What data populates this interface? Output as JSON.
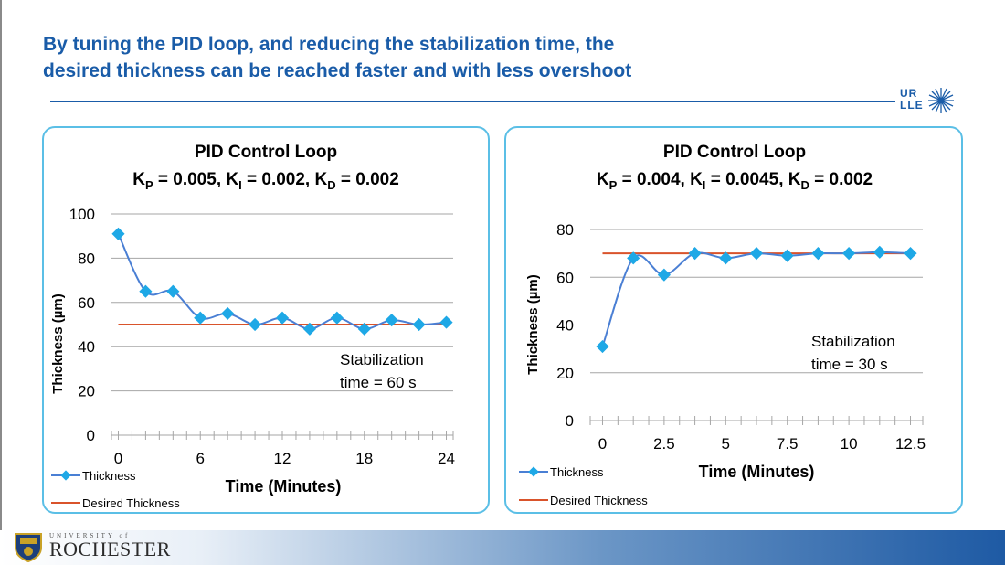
{
  "slide": {
    "title_line1": "By tuning the PID loop, and reducing the stabilization time, the",
    "title_line2": "desired thickness can be reached faster and with less overshoot",
    "logo_text_top": "UR",
    "logo_text_bottom": "LLE",
    "footer_univ_small": "UNIVERSITY of",
    "footer_univ_name": "ROCHESTER",
    "colors": {
      "title": "#1a5ca8",
      "panel_border": "#5bbfe6",
      "thickness": "#4a7fd4",
      "desired": "#d9532b"
    }
  },
  "chart_data": [
    {
      "type": "line",
      "title": "PID Control Loop",
      "gains": {
        "kp": "0.005",
        "ki": "0.002",
        "kd": "0.002"
      },
      "xlabel": "Time (Minutes)",
      "ylabel": "Thickness (µm)",
      "xlim": [
        -0.5,
        24.5
      ],
      "ylim": [
        0,
        100
      ],
      "xticks": [
        "0",
        "6",
        "12",
        "18",
        "24"
      ],
      "yticks": [
        "0",
        "20",
        "40",
        "60",
        "80",
        "100"
      ],
      "grid": true,
      "annotation_line1": "Stabilization",
      "annotation_line2": "time = 60 s",
      "legend": {
        "thickness": "Thickness",
        "desired": "Desired Thickness"
      },
      "series": [
        {
          "name": "Thickness",
          "x": [
            0,
            2,
            4,
            6,
            8,
            10,
            12,
            14,
            16,
            18,
            20,
            22,
            24
          ],
          "y": [
            91,
            65,
            65,
            53,
            55,
            50,
            53,
            48,
            53,
            48,
            52,
            50,
            51
          ]
        },
        {
          "name": "Desired Thickness",
          "x": [
            0,
            24
          ],
          "y": [
            50,
            50
          ]
        }
      ]
    },
    {
      "type": "line",
      "title": "PID Control Loop",
      "gains": {
        "kp": "0.004",
        "ki": "0.0045",
        "kd": "0.002"
      },
      "xlabel": "Time (Minutes)",
      "ylabel": "Thickness (µm)",
      "xlim": [
        -0.5,
        13
      ],
      "ylim": [
        0,
        80
      ],
      "xticks": [
        "0",
        "2.5",
        "5",
        "7.5",
        "10",
        "12.5"
      ],
      "yticks": [
        "0",
        "20",
        "40",
        "60",
        "80"
      ],
      "grid": true,
      "annotation_line1": "Stabilization",
      "annotation_line2": "time = 30 s",
      "legend": {
        "thickness": "Thickness",
        "desired": "Desired Thickness"
      },
      "series": [
        {
          "name": "Thickness",
          "x": [
            0,
            1.25,
            2.5,
            3.75,
            5,
            6.25,
            7.5,
            8.75,
            10,
            11.25,
            12.5
          ],
          "y": [
            31,
            68,
            61,
            70,
            68,
            70,
            69,
            70,
            70,
            70.5,
            70
          ]
        },
        {
          "name": "Desired Thickness",
          "x": [
            0,
            12.5
          ],
          "y": [
            70,
            70
          ]
        }
      ]
    }
  ]
}
